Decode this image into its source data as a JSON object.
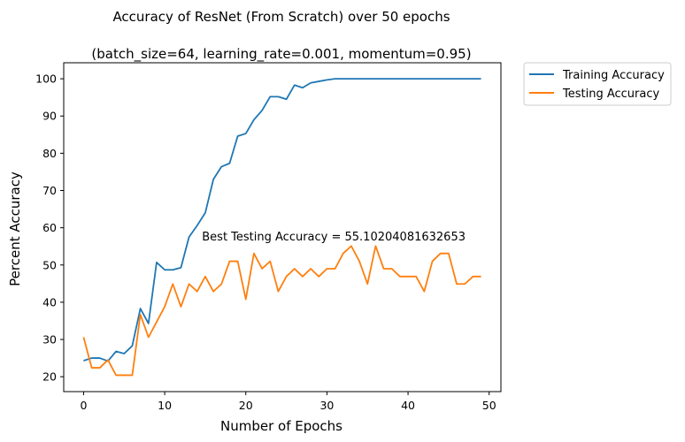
{
  "chart_data": {
    "type": "line",
    "title": "Accuracy of ResNet (From Scratch) over 50 epochs",
    "subtitle": "(batch_size=64, learning_rate=0.001, momentum=0.95)",
    "xlabel": "Number of Epochs",
    "ylabel": "Percent Accuracy",
    "xlim": [
      -2.45,
      51.45
    ],
    "ylim": [
      16.0,
      104.3
    ],
    "xticks": [
      0,
      10,
      20,
      30,
      40,
      50
    ],
    "yticks": [
      20,
      30,
      40,
      50,
      60,
      70,
      80,
      90,
      100
    ],
    "grid": false,
    "legend_placement": "outside-top-right",
    "x": [
      0,
      1,
      2,
      3,
      4,
      5,
      6,
      7,
      8,
      9,
      10,
      11,
      12,
      13,
      14,
      15,
      16,
      17,
      18,
      19,
      20,
      21,
      22,
      23,
      24,
      25,
      26,
      27,
      28,
      29,
      30,
      31,
      32,
      33,
      34,
      35,
      36,
      37,
      38,
      39,
      40,
      41,
      42,
      43,
      44,
      45,
      46,
      47,
      48,
      49
    ],
    "series": [
      {
        "name": "Training Accuracy",
        "color": "#1f77b4",
        "values": [
          24.3,
          25.0,
          25.0,
          24.2,
          26.8,
          26.2,
          28.3,
          38.3,
          34.3,
          50.7,
          48.7,
          48.7,
          49.3,
          57.5,
          60.6,
          64.0,
          73.0,
          76.4,
          77.3,
          84.6,
          85.3,
          89.0,
          91.5,
          95.2,
          95.2,
          94.5,
          98.3,
          97.6,
          98.9,
          99.3,
          99.7,
          100,
          100,
          100,
          100,
          100,
          100,
          100,
          100,
          100,
          100,
          100,
          100,
          100,
          100,
          100,
          100,
          100,
          100,
          100
        ]
      },
      {
        "name": "Testing Accuracy",
        "color": "#ff7f0e",
        "values": [
          30.6,
          22.4,
          22.4,
          24.5,
          20.4,
          20.4,
          20.4,
          36.7,
          30.6,
          34.7,
          38.8,
          44.9,
          38.8,
          44.9,
          42.9,
          46.9,
          42.9,
          44.9,
          51.0,
          51.0,
          40.8,
          53.1,
          49.0,
          51.0,
          42.9,
          46.9,
          49.0,
          46.9,
          49.0,
          46.9,
          49.0,
          49.0,
          53.1,
          55.1,
          51.0,
          44.9,
          55.1,
          49.0,
          49.0,
          46.9,
          46.9,
          46.9,
          42.9,
          51.0,
          53.1,
          53.1,
          44.9,
          44.9,
          46.9,
          46.9
        ]
      }
    ],
    "annotation": {
      "text": "Best Testing Accuracy = 55.10204081632653",
      "x": 14.6,
      "y": 56.6
    }
  }
}
